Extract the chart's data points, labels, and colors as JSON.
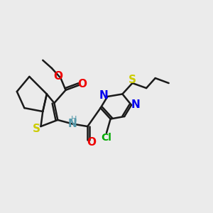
{
  "background_color": "#ebebeb",
  "figsize": [
    3.0,
    3.0
  ],
  "dpi": 100,
  "line_color": "#1a1a1a",
  "line_width": 1.8,
  "S_color": "#cccc00",
  "N_color": "#0000ee",
  "O_color": "#ee0000",
  "Cl_color": "#00aa00",
  "NH_color": "#5599aa",
  "xlim": [
    0.0,
    4.2
  ],
  "ylim": [
    0.0,
    3.5
  ]
}
